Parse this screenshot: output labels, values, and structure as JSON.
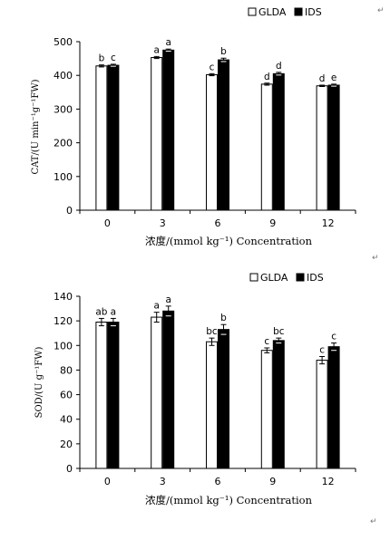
{
  "page_marks": {
    "return_glyph": "↵"
  },
  "chart_data": [
    {
      "type": "bar",
      "categories": [
        "0",
        "3",
        "6",
        "9",
        "12"
      ],
      "series": [
        {
          "name": "GLDA",
          "values": [
            428,
            453,
            402,
            374,
            369
          ],
          "errors": [
            3,
            3,
            3,
            3,
            2
          ],
          "color": "#ffffff"
        },
        {
          "name": "IDS",
          "values": [
            430,
            475,
            446,
            405,
            371
          ],
          "errors": [
            3,
            3,
            5,
            4,
            3
          ],
          "color": "#000000"
        }
      ],
      "significance": [
        [
          "b",
          "c"
        ],
        [
          "a",
          "a"
        ],
        [
          "c",
          "b"
        ],
        [
          "d",
          "d"
        ],
        [
          "d",
          "e"
        ]
      ],
      "xlabel": "浓度/(mmol kg⁻¹)  Concentration",
      "ylabel": "CAT/(U min⁻¹g⁻¹FW)",
      "ylim": [
        0,
        500
      ],
      "yticks": [
        0,
        100,
        200,
        300,
        400,
        500
      ],
      "legend": "top-right",
      "grid": false
    },
    {
      "type": "bar",
      "categories": [
        "0",
        "3",
        "6",
        "9",
        "12"
      ],
      "series": [
        {
          "name": "GLDA",
          "values": [
            119,
            123,
            103,
            96,
            88
          ],
          "errors": [
            3,
            4,
            3,
            2,
            3
          ],
          "color": "#ffffff"
        },
        {
          "name": "IDS",
          "values": [
            119,
            128,
            113,
            104,
            99
          ],
          "errors": [
            3,
            4,
            4,
            2,
            3
          ],
          "color": "#000000"
        }
      ],
      "significance": [
        [
          "ab",
          "a"
        ],
        [
          "a",
          "a"
        ],
        [
          "bc",
          "b"
        ],
        [
          "c",
          "bc"
        ],
        [
          "c",
          "c"
        ]
      ],
      "xlabel": "浓度/(mmol kg⁻¹)  Concentration",
      "ylabel": "SOD/(U g⁻¹FW)",
      "ylim": [
        0,
        140
      ],
      "yticks": [
        0,
        20,
        40,
        60,
        80,
        100,
        120,
        140
      ],
      "legend": "top-right",
      "grid": false
    }
  ]
}
